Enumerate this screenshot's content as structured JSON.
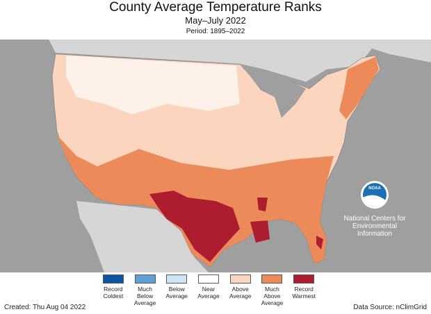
{
  "header": {
    "title": "County Average Temperature Ranks",
    "subtitle": "May–July 2022",
    "period": "Period: 1895–2022"
  },
  "legend": {
    "items": [
      {
        "label": "Record Coldest",
        "color": "#0b55a3"
      },
      {
        "label": "Much Below Average",
        "color": "#5f9fd4"
      },
      {
        "label": "Below Average",
        "color": "#cfe4f4"
      },
      {
        "label": "Near Average",
        "color": "#ffffff"
      },
      {
        "label": "Above Average",
        "color": "#fbd5bd"
      },
      {
        "label": "Much Above Average",
        "color": "#ec8a5a"
      },
      {
        "label": "Record Warmest",
        "color": "#ae1d2f"
      }
    ]
  },
  "logo": {
    "badge": "NOAA",
    "lines": [
      "National Centers for",
      "Environmental",
      "Information"
    ]
  },
  "footer": {
    "created": "Created: Thu Aug 04 2022",
    "source": "Data Source: nClimGrid"
  }
}
